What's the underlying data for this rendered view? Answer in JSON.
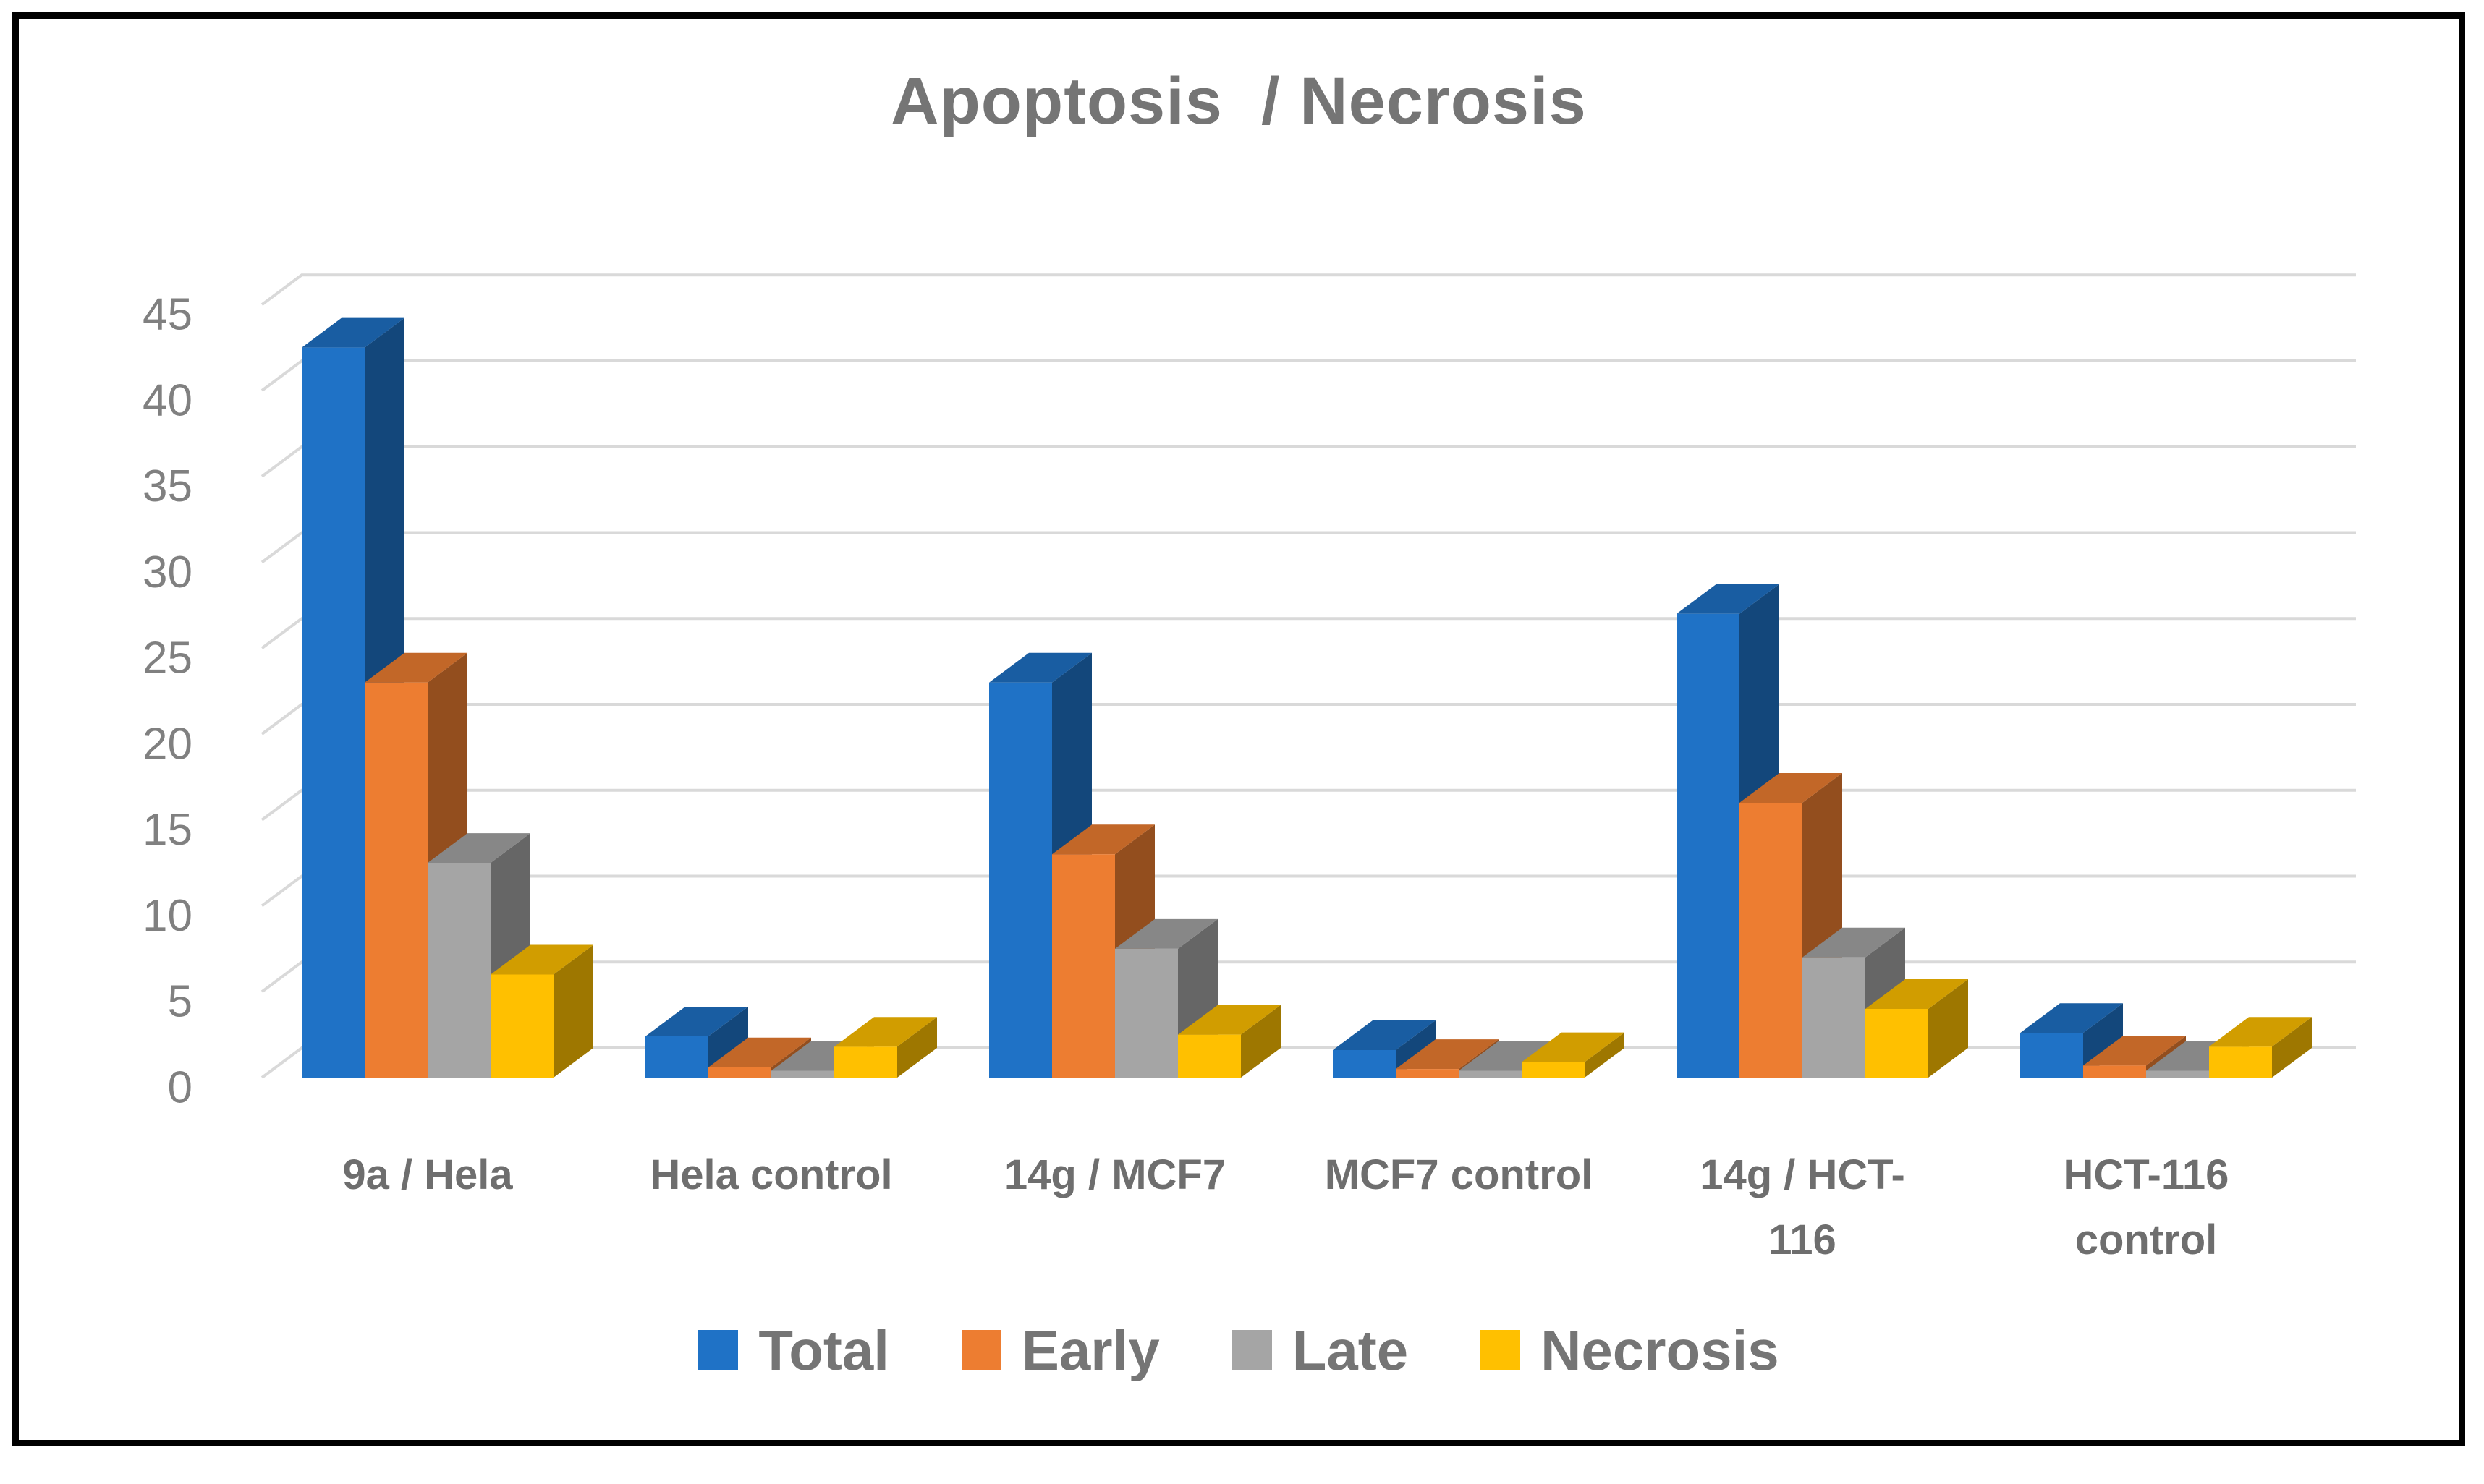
{
  "chart_data": {
    "type": "bar",
    "subtype": "3d-clustered-column",
    "title": "Apoptosis  / Necrosis",
    "xlabel": "",
    "ylabel": "",
    "ylim": [
      0,
      45
    ],
    "ytick_step": 5,
    "yticks": [
      0,
      5,
      10,
      15,
      20,
      25,
      30,
      35,
      40,
      45
    ],
    "grid": true,
    "legend_position": "bottom",
    "categories": [
      "9a / Hela",
      "Hela control",
      "14g / MCF7",
      "MCF7 control",
      "14g / HCT-116",
      "HCT-116 control"
    ],
    "category_label_lines": [
      [
        "9a / Hela"
      ],
      [
        "Hela control"
      ],
      [
        "14g / MCF7"
      ],
      [
        "MCF7 control"
      ],
      [
        "14g / HCT-",
        "116"
      ],
      [
        "HCT-116",
        "control"
      ]
    ],
    "series": [
      {
        "name": "Total",
        "color": "#1F72C6",
        "values": [
          42.5,
          2.4,
          23.0,
          1.6,
          27.0,
          2.6
        ]
      },
      {
        "name": "Early",
        "color": "#ED7D31",
        "values": [
          23.0,
          0.6,
          13.0,
          0.5,
          16.0,
          0.7
        ]
      },
      {
        "name": "Late",
        "color": "#A5A5A5",
        "values": [
          12.5,
          0.4,
          7.5,
          0.4,
          7.0,
          0.4
        ]
      },
      {
        "name": "Necrosis",
        "color": "#FFC000",
        "values": [
          6.0,
          1.8,
          2.5,
          0.9,
          4.0,
          1.8
        ]
      }
    ]
  },
  "style_colors": {
    "gridline": "#D9D9D9",
    "axis_text": "#808080",
    "title_text": "#757575",
    "frame_border": "#000000",
    "background": "#FFFFFF"
  }
}
